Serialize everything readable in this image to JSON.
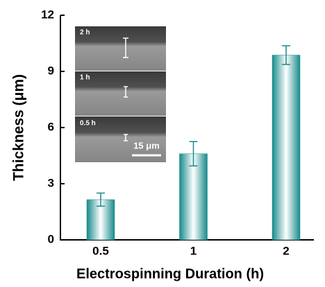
{
  "chart_data": {
    "type": "bar",
    "x_label": "Electrospinning Duration (h)",
    "y_label": "Thickness (μm)",
    "categories": [
      "0.5",
      "1",
      "2"
    ],
    "values": [
      2.15,
      4.6,
      9.87
    ],
    "errors": [
      0.35,
      0.65,
      0.5
    ],
    "color": "#17898a",
    "ylim": [
      0,
      12
    ],
    "yticks": [
      0,
      3,
      6,
      9,
      12
    ],
    "inset": {
      "panels": [
        "2 h",
        "1 h",
        "0.5 h"
      ],
      "scale_bar": "15 μm"
    }
  }
}
